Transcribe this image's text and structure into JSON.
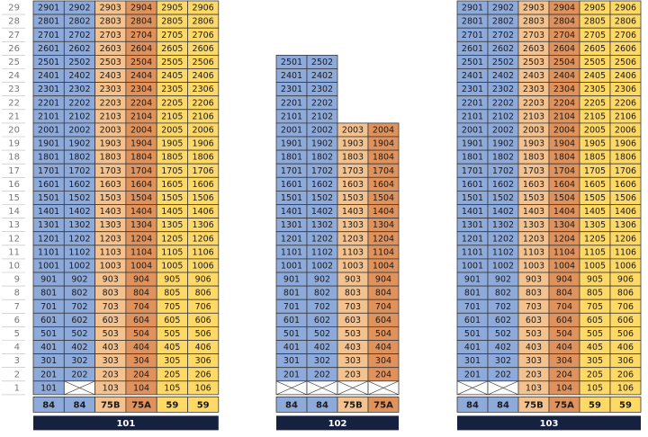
{
  "floors": [
    29,
    28,
    27,
    26,
    25,
    24,
    23,
    22,
    21,
    20,
    19,
    18,
    17,
    16,
    15,
    14,
    13,
    12,
    11,
    10,
    9,
    8,
    7,
    6,
    5,
    4,
    3,
    2,
    1
  ],
  "buildings": [
    {
      "name": "101",
      "column_colors": [
        "#8eaadb",
        "#8eaadb",
        "#f4c28e",
        "#e0925c",
        "#ffd966",
        "#ffd966"
      ],
      "rows": [
        [
          2901,
          2902,
          2903,
          2904,
          2905,
          2906
        ],
        [
          2801,
          2802,
          2803,
          2804,
          2805,
          2806
        ],
        [
          2701,
          2702,
          2703,
          2704,
          2705,
          2706
        ],
        [
          2601,
          2602,
          2603,
          2604,
          2605,
          2606
        ],
        [
          2501,
          2502,
          2503,
          2504,
          2505,
          2506
        ],
        [
          2401,
          2402,
          2403,
          2404,
          2405,
          2406
        ],
        [
          2301,
          2302,
          2303,
          2304,
          2305,
          2306
        ],
        [
          2201,
          2202,
          2203,
          2204,
          2205,
          2206
        ],
        [
          2101,
          2102,
          2103,
          2104,
          2105,
          2106
        ],
        [
          2001,
          2002,
          2003,
          2004,
          2005,
          2006
        ],
        [
          1901,
          1902,
          1903,
          1904,
          1905,
          1906
        ],
        [
          1801,
          1802,
          1803,
          1804,
          1805,
          1806
        ],
        [
          1701,
          1702,
          1703,
          1704,
          1705,
          1706
        ],
        [
          1601,
          1602,
          1603,
          1604,
          1605,
          1606
        ],
        [
          1501,
          1502,
          1503,
          1504,
          1505,
          1506
        ],
        [
          1401,
          1402,
          1403,
          1404,
          1405,
          1406
        ],
        [
          1301,
          1302,
          1303,
          1304,
          1305,
          1306
        ],
        [
          1201,
          1202,
          1203,
          1204,
          1205,
          1206
        ],
        [
          1101,
          1102,
          1103,
          1104,
          1105,
          1106
        ],
        [
          1001,
          1002,
          1003,
          1004,
          1005,
          1006
        ],
        [
          901,
          902,
          903,
          904,
          905,
          906
        ],
        [
          801,
          802,
          803,
          804,
          805,
          806
        ],
        [
          701,
          702,
          703,
          704,
          705,
          706
        ],
        [
          601,
          602,
          603,
          604,
          605,
          606
        ],
        [
          501,
          502,
          503,
          504,
          505,
          506
        ],
        [
          401,
          402,
          403,
          404,
          405,
          406
        ],
        [
          301,
          302,
          303,
          304,
          305,
          306
        ],
        [
          201,
          202,
          203,
          204,
          205,
          206
        ],
        [
          101,
          null,
          103,
          104,
          105,
          106
        ]
      ],
      "types": [
        "84",
        "84",
        "75B",
        "75A",
        "59",
        "59"
      ]
    },
    {
      "name": "102",
      "column_colors": [
        "#8eaadb",
        "#8eaadb",
        "#f4c28e",
        "#e0925c"
      ],
      "rows": [
        [
          2501,
          2502
        ],
        [
          2401,
          2402
        ],
        [
          2301,
          2302
        ],
        [
          2201,
          2202
        ],
        [
          2101,
          2102
        ],
        [
          2001,
          2002,
          2003,
          2004
        ],
        [
          1901,
          1902,
          1903,
          1904
        ],
        [
          1801,
          1802,
          1803,
          1804
        ],
        [
          1701,
          1702,
          1703,
          1704
        ],
        [
          1601,
          1602,
          1603,
          1604
        ],
        [
          1501,
          1502,
          1503,
          1504
        ],
        [
          1401,
          1402,
          1403,
          1404
        ],
        [
          1301,
          1302,
          1303,
          1304
        ],
        [
          1201,
          1202,
          1203,
          1204
        ],
        [
          1101,
          1102,
          1103,
          1104
        ],
        [
          1001,
          1002,
          1003,
          1004
        ],
        [
          901,
          902,
          903,
          904
        ],
        [
          801,
          802,
          803,
          804
        ],
        [
          701,
          702,
          703,
          704
        ],
        [
          601,
          602,
          603,
          604
        ],
        [
          501,
          502,
          503,
          504
        ],
        [
          401,
          402,
          403,
          404
        ],
        [
          301,
          302,
          303,
          304
        ],
        [
          201,
          202,
          203,
          204
        ],
        [
          null,
          null,
          null,
          null
        ]
      ],
      "types": [
        "84",
        "84",
        "75B",
        "75A"
      ]
    },
    {
      "name": "103",
      "column_colors": [
        "#8eaadb",
        "#8eaadb",
        "#f4c28e",
        "#e0925c",
        "#ffd966",
        "#ffd966"
      ],
      "rows": [
        [
          2901,
          2902,
          2903,
          2904,
          2905,
          2906
        ],
        [
          2801,
          2802,
          2803,
          2804,
          2805,
          2806
        ],
        [
          2701,
          2702,
          2703,
          2704,
          2705,
          2706
        ],
        [
          2601,
          2602,
          2603,
          2604,
          2605,
          2606
        ],
        [
          2501,
          2502,
          2503,
          2504,
          2505,
          2506
        ],
        [
          2401,
          2402,
          2403,
          2404,
          2405,
          2406
        ],
        [
          2301,
          2302,
          2303,
          2304,
          2305,
          2306
        ],
        [
          2201,
          2202,
          2203,
          2204,
          2205,
          2206
        ],
        [
          2101,
          2102,
          2103,
          2104,
          2105,
          2106
        ],
        [
          2001,
          2002,
          2003,
          2004,
          2005,
          2006
        ],
        [
          1901,
          1902,
          1903,
          1904,
          1905,
          1906
        ],
        [
          1801,
          1802,
          1803,
          1804,
          1805,
          1806
        ],
        [
          1701,
          1702,
          1703,
          1704,
          1705,
          1706
        ],
        [
          1601,
          1602,
          1603,
          1604,
          1605,
          1606
        ],
        [
          1501,
          1502,
          1503,
          1504,
          1505,
          1506
        ],
        [
          1401,
          1402,
          1403,
          1404,
          1405,
          1406
        ],
        [
          1301,
          1302,
          1303,
          1304,
          1305,
          1306
        ],
        [
          1201,
          1202,
          1203,
          1204,
          1205,
          1206
        ],
        [
          1101,
          1102,
          1103,
          1104,
          1105,
          1106
        ],
        [
          1001,
          1002,
          1003,
          1004,
          1005,
          1006
        ],
        [
          901,
          902,
          903,
          904,
          905,
          906
        ],
        [
          801,
          802,
          803,
          804,
          805,
          806
        ],
        [
          701,
          702,
          703,
          704,
          705,
          706
        ],
        [
          601,
          602,
          603,
          604,
          605,
          606
        ],
        [
          501,
          502,
          503,
          504,
          505,
          506
        ],
        [
          401,
          402,
          403,
          404,
          405,
          406
        ],
        [
          301,
          302,
          303,
          304,
          305,
          306
        ],
        [
          201,
          202,
          203,
          204,
          205,
          206
        ],
        [
          null,
          null,
          103,
          104,
          105,
          106
        ]
      ],
      "types": [
        "84",
        "84",
        "75B",
        "75A",
        "59",
        "59"
      ]
    }
  ]
}
